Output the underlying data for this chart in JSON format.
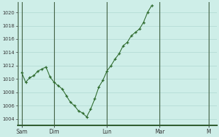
{
  "y_values": [
    1011,
    1009.5,
    1010.2,
    1010.5,
    1011.2,
    1011.5,
    1011.8,
    1010.3,
    1009.5,
    1009.0,
    1008.5,
    1007.5,
    1006.5,
    1006.0,
    1005.2,
    1004.9,
    1004.3,
    1005.5,
    1007.0,
    1008.8,
    1009.8,
    1011.2,
    1012.0,
    1013.0,
    1013.8,
    1015.0,
    1015.5,
    1016.5,
    1017.0,
    1017.5,
    1018.5,
    1020.0,
    1021.0
  ],
  "day_ticks_x": [
    0,
    8,
    21,
    34,
    46
  ],
  "day_tick_labels": [
    "Sam",
    "Dim",
    "Lun",
    "Mar",
    "M"
  ],
  "vline_positions": [
    0,
    8,
    21,
    34,
    46
  ],
  "yticks": [
    1004,
    1006,
    1008,
    1010,
    1012,
    1014,
    1016,
    1018,
    1020
  ],
  "ylim": [
    1003.0,
    1021.5
  ],
  "xlim": [
    -1,
    48
  ],
  "line_color": "#2d6a2d",
  "bg_color": "#ceeee8",
  "grid_color": "#add8d0",
  "figsize": [
    3.2,
    2.0
  ],
  "dpi": 100
}
